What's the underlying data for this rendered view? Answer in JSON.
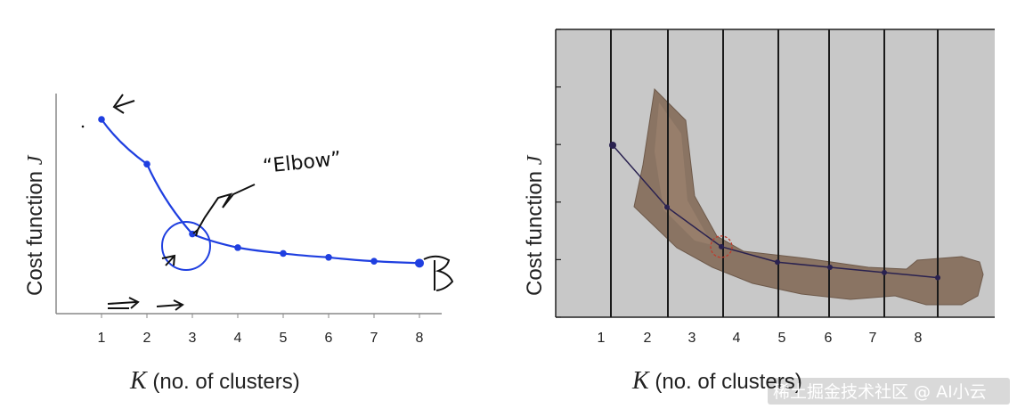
{
  "chart_data": [
    {
      "type": "line",
      "x": [
        1,
        2,
        3,
        4,
        5,
        6,
        7,
        8
      ],
      "values": [
        100,
        77,
        41,
        34,
        31,
        29,
        27,
        26
      ],
      "ylim": [
        0,
        115
      ],
      "xlim": [
        0,
        9
      ],
      "tick_labels": [
        "1",
        "2",
        "3",
        "4",
        "5",
        "6",
        "7",
        "8"
      ],
      "xlabel_var": "K",
      "xlabel_rest": " (no. of clusters)",
      "ylabel_text": "Cost function ",
      "ylabel_var": "J",
      "annotation": "“Elbow”",
      "color": "#1f3fe0",
      "grid": false
    },
    {
      "type": "line",
      "x": [
        1,
        2,
        3,
        4,
        5,
        6,
        7,
        8
      ],
      "values": [
        100,
        64,
        41,
        35,
        32,
        29,
        26,
        23
      ],
      "ylim": [
        0,
        125
      ],
      "xlim": [
        0,
        9
      ],
      "tick_labels": [
        "1",
        "2",
        "3",
        "4",
        "5",
        "6",
        "7",
        "8"
      ],
      "xlabel_var": "K",
      "xlabel_rest": " (no. of clusters)",
      "ylabel_text": "Cost function ",
      "ylabel_var": "J",
      "color": "#2a2250",
      "background": "#c8c8c8",
      "grid": true
    }
  ],
  "watermark": "稀土掘金技术社区 @ AI小云"
}
